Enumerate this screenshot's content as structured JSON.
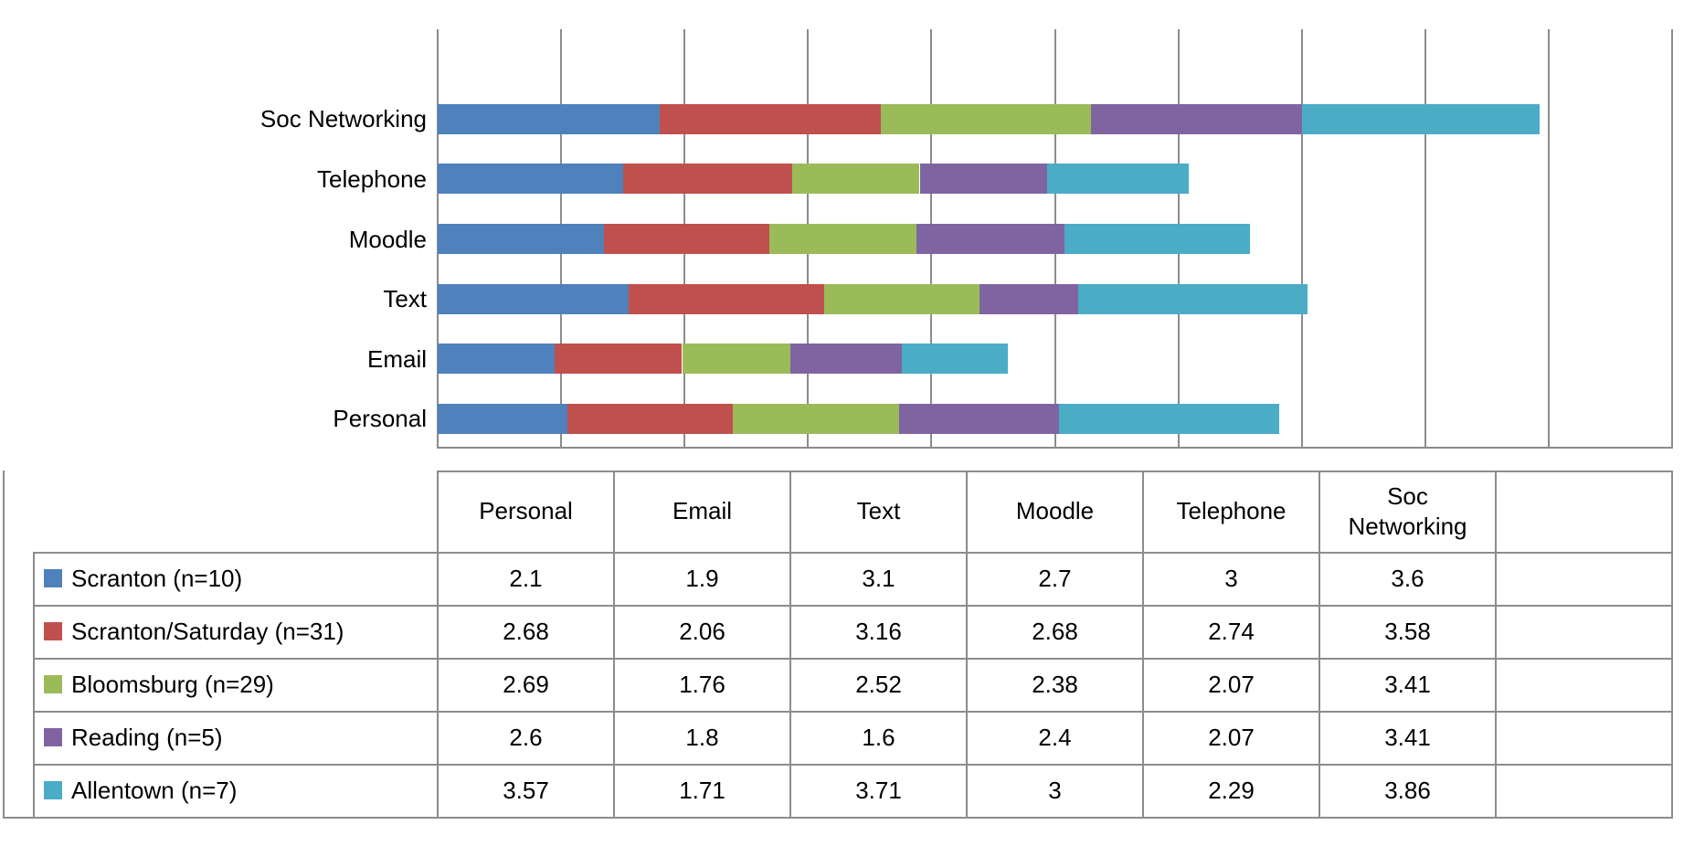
{
  "chart_data": {
    "type": "bar",
    "orientation": "horizontal",
    "stacked": true,
    "title": "",
    "xlabel": "",
    "ylabel": "",
    "xlim": [
      0,
      20
    ],
    "gridline_step": 2,
    "grid": "vertical",
    "axis_tick_labels_visible": false,
    "legend_position": "data-table-below-chart",
    "grid_color": "#8C8C8C",
    "bar_categories_top_to_bottom": [
      "Soc Networking",
      "Telephone",
      "Moodle",
      "Text",
      "Email",
      "Personal"
    ],
    "table_columns": [
      "Personal",
      "Email",
      "Text",
      "Moodle",
      "Telephone",
      "Soc Networking",
      ""
    ],
    "series": [
      {
        "name": "Scranton (n=10)",
        "color": "#4F81BD",
        "values_by_column": [
          2.1,
          1.9,
          3.1,
          2.7,
          3,
          3.6
        ]
      },
      {
        "name": "Scranton/Saturday (n=31)",
        "color": "#C0504D",
        "values_by_column": [
          2.68,
          2.06,
          3.16,
          2.68,
          2.74,
          3.58
        ]
      },
      {
        "name": "Bloomsburg (n=29)",
        "color": "#9BBB59",
        "values_by_column": [
          2.69,
          1.76,
          2.52,
          2.38,
          2.07,
          3.41
        ]
      },
      {
        "name": "Reading (n=5)",
        "color": "#8064A2",
        "values_by_column": [
          2.6,
          1.8,
          1.6,
          2.4,
          2.07,
          3.41
        ]
      },
      {
        "name": "Allentown (n=7)",
        "color": "#4BACC6",
        "values_by_column": [
          3.57,
          1.71,
          3.71,
          3,
          2.29,
          3.86
        ]
      }
    ]
  }
}
